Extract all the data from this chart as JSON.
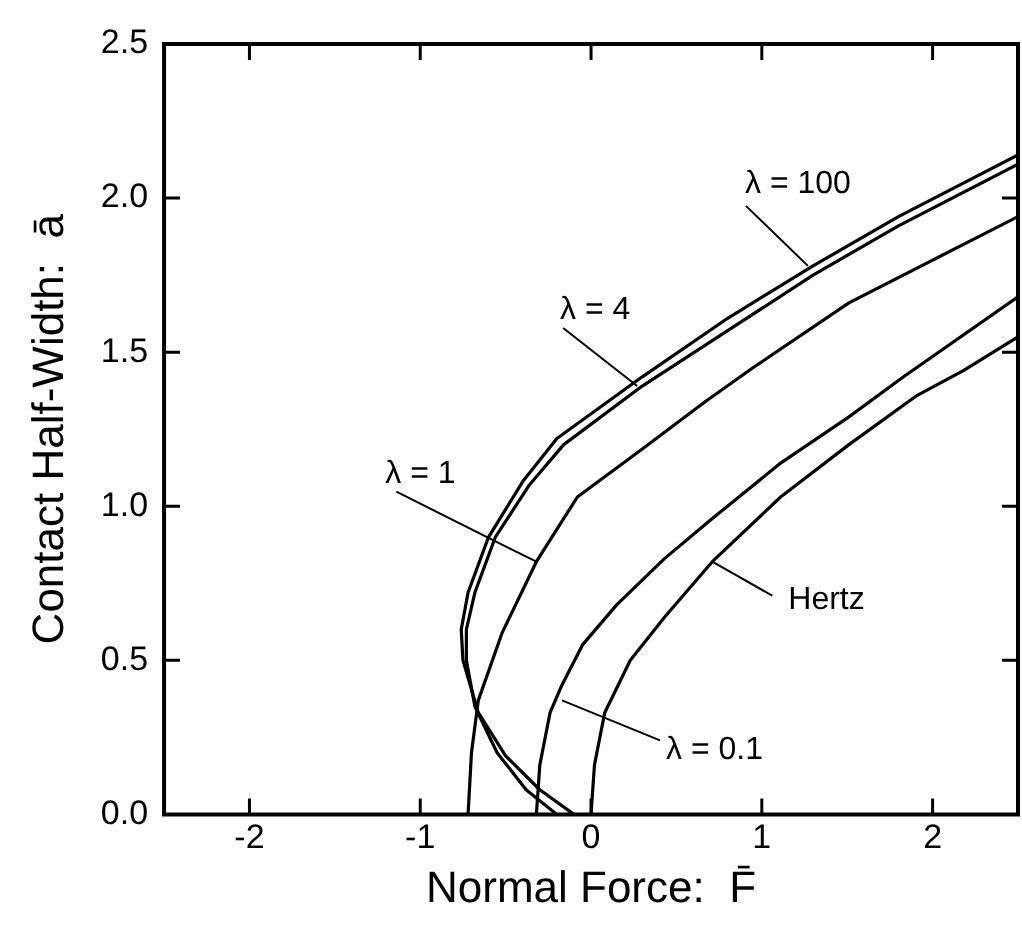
{
  "chart_data": {
    "type": "line",
    "xlabel": "Normal Force:  F̄",
    "ylabel": "Contact Half-Width:  ā",
    "xlim": [
      -2.5,
      2.5
    ],
    "xticks": [
      -2,
      -1,
      0,
      1,
      2
    ],
    "ylim": [
      0,
      2.5
    ],
    "yticks": [
      {
        "value": 0,
        "label": "0.0"
      },
      {
        "value": 0.5,
        "label": "0.5"
      },
      {
        "value": 1,
        "label": "1.0"
      },
      {
        "value": 1.5,
        "label": "1.5"
      },
      {
        "value": 2,
        "label": "2.0"
      },
      {
        "value": 2.5,
        "label": "2.5"
      }
    ],
    "marker": "none",
    "line_style": "solid",
    "legend": false,
    "series": [
      {
        "color": "#000000",
        "x": [
          -0.1,
          -0.3,
          -0.5,
          -0.66,
          -0.75,
          -0.76,
          -0.72,
          -0.6,
          -0.4,
          -0.2,
          0.3,
          0.8,
          1.3,
          1.8,
          2.5
        ],
        "values": [
          0,
          0.08,
          0.19,
          0.33,
          0.5,
          0.6,
          0.72,
          0.9,
          1.08,
          1.22,
          1.42,
          1.61,
          1.78,
          1.94,
          2.14
        ]
      },
      {
        "color": "#000000",
        "x": [
          -0.2,
          -0.38,
          -0.55,
          -0.68,
          -0.73,
          -0.73,
          -0.68,
          -0.56,
          -0.36,
          -0.16,
          0.3,
          0.8,
          1.3,
          1.8,
          2.5
        ],
        "values": [
          0,
          0.08,
          0.2,
          0.35,
          0.5,
          0.6,
          0.72,
          0.9,
          1.07,
          1.2,
          1.39,
          1.57,
          1.75,
          1.91,
          2.11
        ]
      },
      {
        "color": "#000000",
        "x": [
          -0.72,
          -0.7,
          -0.66,
          -0.52,
          -0.32,
          -0.08,
          0.31,
          0.67,
          0.95,
          1.51,
          2.5
        ],
        "values": [
          0,
          0.2,
          0.37,
          0.59,
          0.82,
          1.03,
          1.19,
          1.34,
          1.45,
          1.66,
          1.94
        ]
      },
      {
        "color": "#000000",
        "x": [
          0,
          0.02,
          0.08,
          0.23,
          0.43,
          0.71,
          1.11,
          1.51,
          1.91,
          2.18,
          2.5
        ],
        "values": [
          0,
          0.16,
          0.33,
          0.5,
          0.64,
          0.82,
          1.03,
          1.2,
          1.36,
          1.44,
          1.55
        ]
      },
      {
        "color": "#000000",
        "x": [
          -0.32,
          -0.3,
          -0.24,
          -0.17,
          -0.05,
          0.15,
          0.43,
          0.71,
          1.11,
          1.51,
          1.83,
          2.5
        ],
        "values": [
          0,
          0.16,
          0.33,
          0.42,
          0.55,
          0.68,
          0.83,
          0.96,
          1.14,
          1.29,
          1.42,
          1.68
        ]
      }
    ],
    "annotations": [
      {
        "text": "λ = 100",
        "x": 1.27,
        "y": 1.78
      },
      {
        "text": "λ = 4",
        "x": 0.27,
        "y": 1.39
      },
      {
        "text": "λ = 1",
        "x": -0.32,
        "y": 0.82
      },
      {
        "text": "Hertz",
        "x": 0.71,
        "y": 0.82
      },
      {
        "text": "λ = 0.1",
        "x": -0.17,
        "y": 0.37
      }
    ]
  }
}
